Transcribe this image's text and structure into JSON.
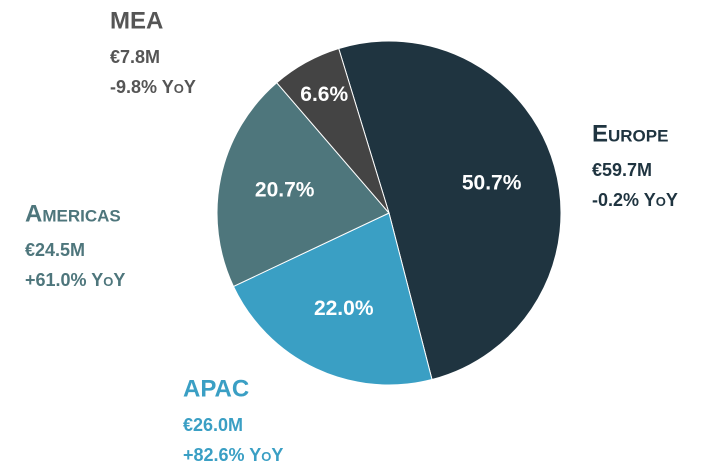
{
  "chart_data": {
    "type": "pie",
    "categories": [
      "Europe",
      "APAC",
      "Americas",
      "MEA"
    ],
    "values": [
      50.7,
      22.0,
      20.7,
      6.6
    ],
    "value_labels": [
      "50.7%",
      "22.0%",
      "20.7%",
      "6.6%"
    ],
    "colors": [
      "#1f3440",
      "#3a9fc4",
      "#4e767c",
      "#444444"
    ],
    "label_colors": [
      "#1f3440",
      "#3a9fc4",
      "#4e767c",
      "#555555"
    ],
    "revenue": [
      "€59.7M",
      "€26.0M",
      "€24.5M",
      "€7.8M"
    ],
    "change": [
      "-0.2% YoY",
      "+82.6% YoY",
      "+61.0% YoY",
      "-9.8% YoY"
    ]
  }
}
